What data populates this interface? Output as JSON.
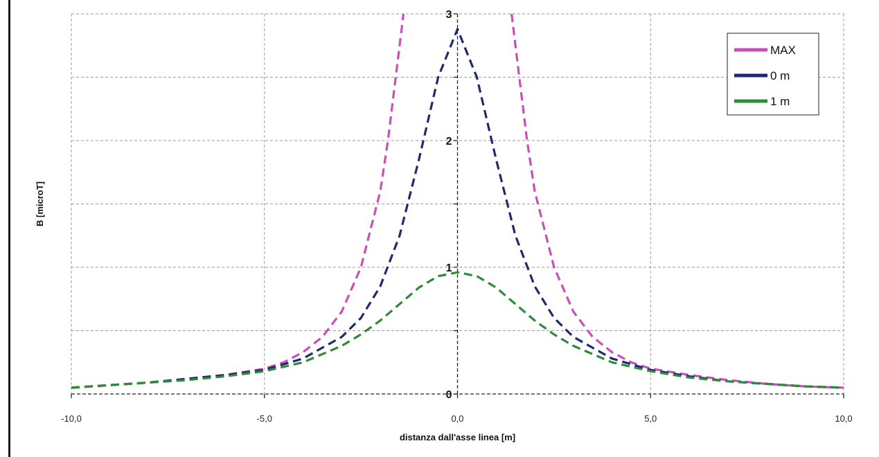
{
  "chart_data": {
    "type": "line",
    "title": "",
    "xlabel": "distanza dall'asse linea [m]",
    "ylabel": "B [microT]",
    "xlim": [
      -10,
      10
    ],
    "ylim": [
      0,
      3
    ],
    "x_ticks": [
      -10,
      -5,
      0,
      5,
      10
    ],
    "x_tick_labels": [
      "-10,0",
      "-5,0",
      "0,0",
      "5,0",
      "10,0"
    ],
    "y_ticks": [
      0,
      1,
      2,
      3
    ],
    "y_tick_labels": [
      "0",
      "1",
      "2",
      "3"
    ],
    "grid": true,
    "legend_position": "top-right",
    "series": [
      {
        "name": "MAX",
        "color": "#c94fb8",
        "x": [
          -10,
          -9,
          -8,
          -7,
          -6,
          -5,
          -4.5,
          -4,
          -3.5,
          -3,
          -2.5,
          -2,
          -1.8,
          -1.6,
          -1.4,
          1.4,
          1.6,
          1.8,
          2,
          2.5,
          3,
          3.5,
          4,
          4.5,
          5,
          6,
          7,
          8,
          9,
          10
        ],
        "y": [
          0.05,
          0.07,
          0.09,
          0.12,
          0.15,
          0.2,
          0.25,
          0.33,
          0.45,
          0.65,
          1.0,
          1.6,
          2.0,
          2.5,
          3.0,
          3.0,
          2.5,
          2.0,
          1.6,
          1.0,
          0.65,
          0.45,
          0.33,
          0.25,
          0.2,
          0.15,
          0.11,
          0.08,
          0.06,
          0.05
        ]
      },
      {
        "name": "0 m",
        "color": "#1f2a6e",
        "x": [
          -10,
          -9,
          -8,
          -7,
          -6,
          -5,
          -4,
          -3,
          -2.5,
          -2,
          -1.5,
          -1,
          -0.5,
          0,
          0.5,
          1,
          1.5,
          2,
          2.5,
          3,
          4,
          5,
          6,
          7,
          8,
          9,
          10
        ],
        "y": [
          0.05,
          0.07,
          0.09,
          0.12,
          0.15,
          0.19,
          0.28,
          0.45,
          0.6,
          0.85,
          1.25,
          1.85,
          2.5,
          2.88,
          2.5,
          1.85,
          1.25,
          0.85,
          0.6,
          0.45,
          0.28,
          0.19,
          0.14,
          0.1,
          0.08,
          0.06,
          0.05
        ]
      },
      {
        "name": "1 m",
        "color": "#2f8a3a",
        "x": [
          -10,
          -9,
          -8,
          -7,
          -6,
          -5,
          -4,
          -3,
          -2.5,
          -2,
          -1.5,
          -1,
          -0.5,
          0,
          0.5,
          1,
          1.5,
          2,
          2.5,
          3,
          4,
          5,
          6,
          7,
          8,
          9,
          10
        ],
        "y": [
          0.05,
          0.07,
          0.09,
          0.11,
          0.14,
          0.18,
          0.25,
          0.38,
          0.47,
          0.58,
          0.71,
          0.84,
          0.93,
          0.96,
          0.93,
          0.84,
          0.71,
          0.58,
          0.47,
          0.38,
          0.25,
          0.18,
          0.13,
          0.1,
          0.08,
          0.06,
          0.05
        ]
      }
    ]
  }
}
